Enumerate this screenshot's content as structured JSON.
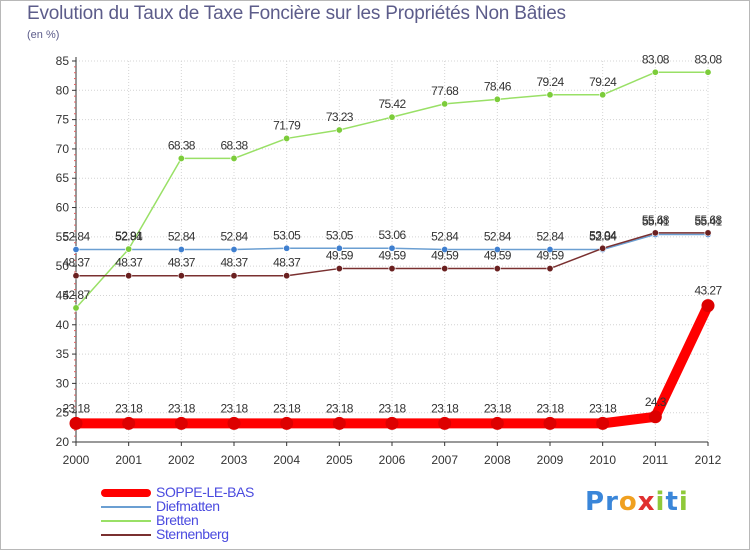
{
  "title": "Evolution du Taux de Taxe Foncière sur les Propriétés Non Bâties",
  "subtitle": "(en %)",
  "logo": {
    "text": "Proxiti",
    "letters": [
      "P",
      "r",
      "o",
      "x",
      "i",
      "t",
      "i"
    ],
    "colors": [
      "#3a86d9",
      "#3a86d9",
      "#f0a020",
      "#e03030",
      "#8fc93a",
      "#3a86d9",
      "#8fc93a"
    ]
  },
  "chart_data": {
    "type": "line",
    "title": "Evolution du Taux de Taxe Foncière sur les Propriétés Non Bâties",
    "ylabel": "(en %)",
    "xlabel": "",
    "x": [
      "2000",
      "2001",
      "2002",
      "2003",
      "2004",
      "2005",
      "2006",
      "2007",
      "2008",
      "2009",
      "2010",
      "2011",
      "2012"
    ],
    "ylim": [
      20,
      85
    ],
    "yticks": [
      20,
      25,
      30,
      35,
      40,
      45,
      50,
      55,
      60,
      65,
      70,
      75,
      80,
      85
    ],
    "grid": true,
    "legend_position": "bottom-left",
    "series": [
      {
        "name": "SOPPE-LE-BAS",
        "color": "#ff0000",
        "marker": "#dd0000",
        "thick": true,
        "values": [
          23.18,
          23.18,
          23.18,
          23.18,
          23.18,
          23.18,
          23.18,
          23.18,
          23.18,
          23.18,
          23.18,
          24.3,
          43.27
        ],
        "labels": [
          "23.18",
          "23.18",
          "23.18",
          "23.18",
          "23.18",
          "23.18",
          "23.18",
          "23.18",
          "23.18",
          "23.18",
          "23.18",
          "24.3",
          "43.27"
        ]
      },
      {
        "name": "Diefmatten",
        "color": "#6b9fd2",
        "marker": "#3f7fcf",
        "thick": false,
        "values": [
          52.84,
          52.84,
          52.84,
          52.84,
          53.05,
          53.05,
          53.06,
          52.84,
          52.84,
          52.84,
          52.84,
          55.41,
          55.41
        ],
        "labels": [
          "52.84",
          "52.84",
          "52.84",
          "52.84",
          "53.05",
          "53.05",
          "53.06",
          "52.84",
          "52.84",
          "52.84",
          "52.84",
          "55.41",
          "55.41"
        ]
      },
      {
        "name": "Bretten",
        "color": "#99e066",
        "marker": "#7ccc3a",
        "thick": false,
        "values": [
          42.87,
          52.91,
          68.38,
          68.38,
          71.79,
          73.23,
          75.42,
          77.68,
          78.46,
          79.24,
          79.24,
          83.08,
          83.08
        ],
        "labels": [
          "42.87",
          "52.91",
          "68.38",
          "68.38",
          "71.79",
          "73.23",
          "75.42",
          "77.68",
          "78.46",
          "79.24",
          "79.24",
          "83.08",
          "83.08"
        ]
      },
      {
        "name": "Sternenberg",
        "color": "#7a3030",
        "marker": "#6a2020",
        "thick": false,
        "values": [
          48.37,
          48.37,
          48.37,
          48.37,
          48.37,
          49.59,
          49.59,
          49.59,
          49.59,
          49.59,
          53.04,
          55.68,
          55.68
        ],
        "labels": [
          "48.37",
          "48.37",
          "48.37",
          "48.37",
          "48.37",
          "49.59",
          "49.59",
          "49.59",
          "49.59",
          "49.59",
          "53.04",
          "55.68",
          "55.68"
        ]
      }
    ]
  }
}
